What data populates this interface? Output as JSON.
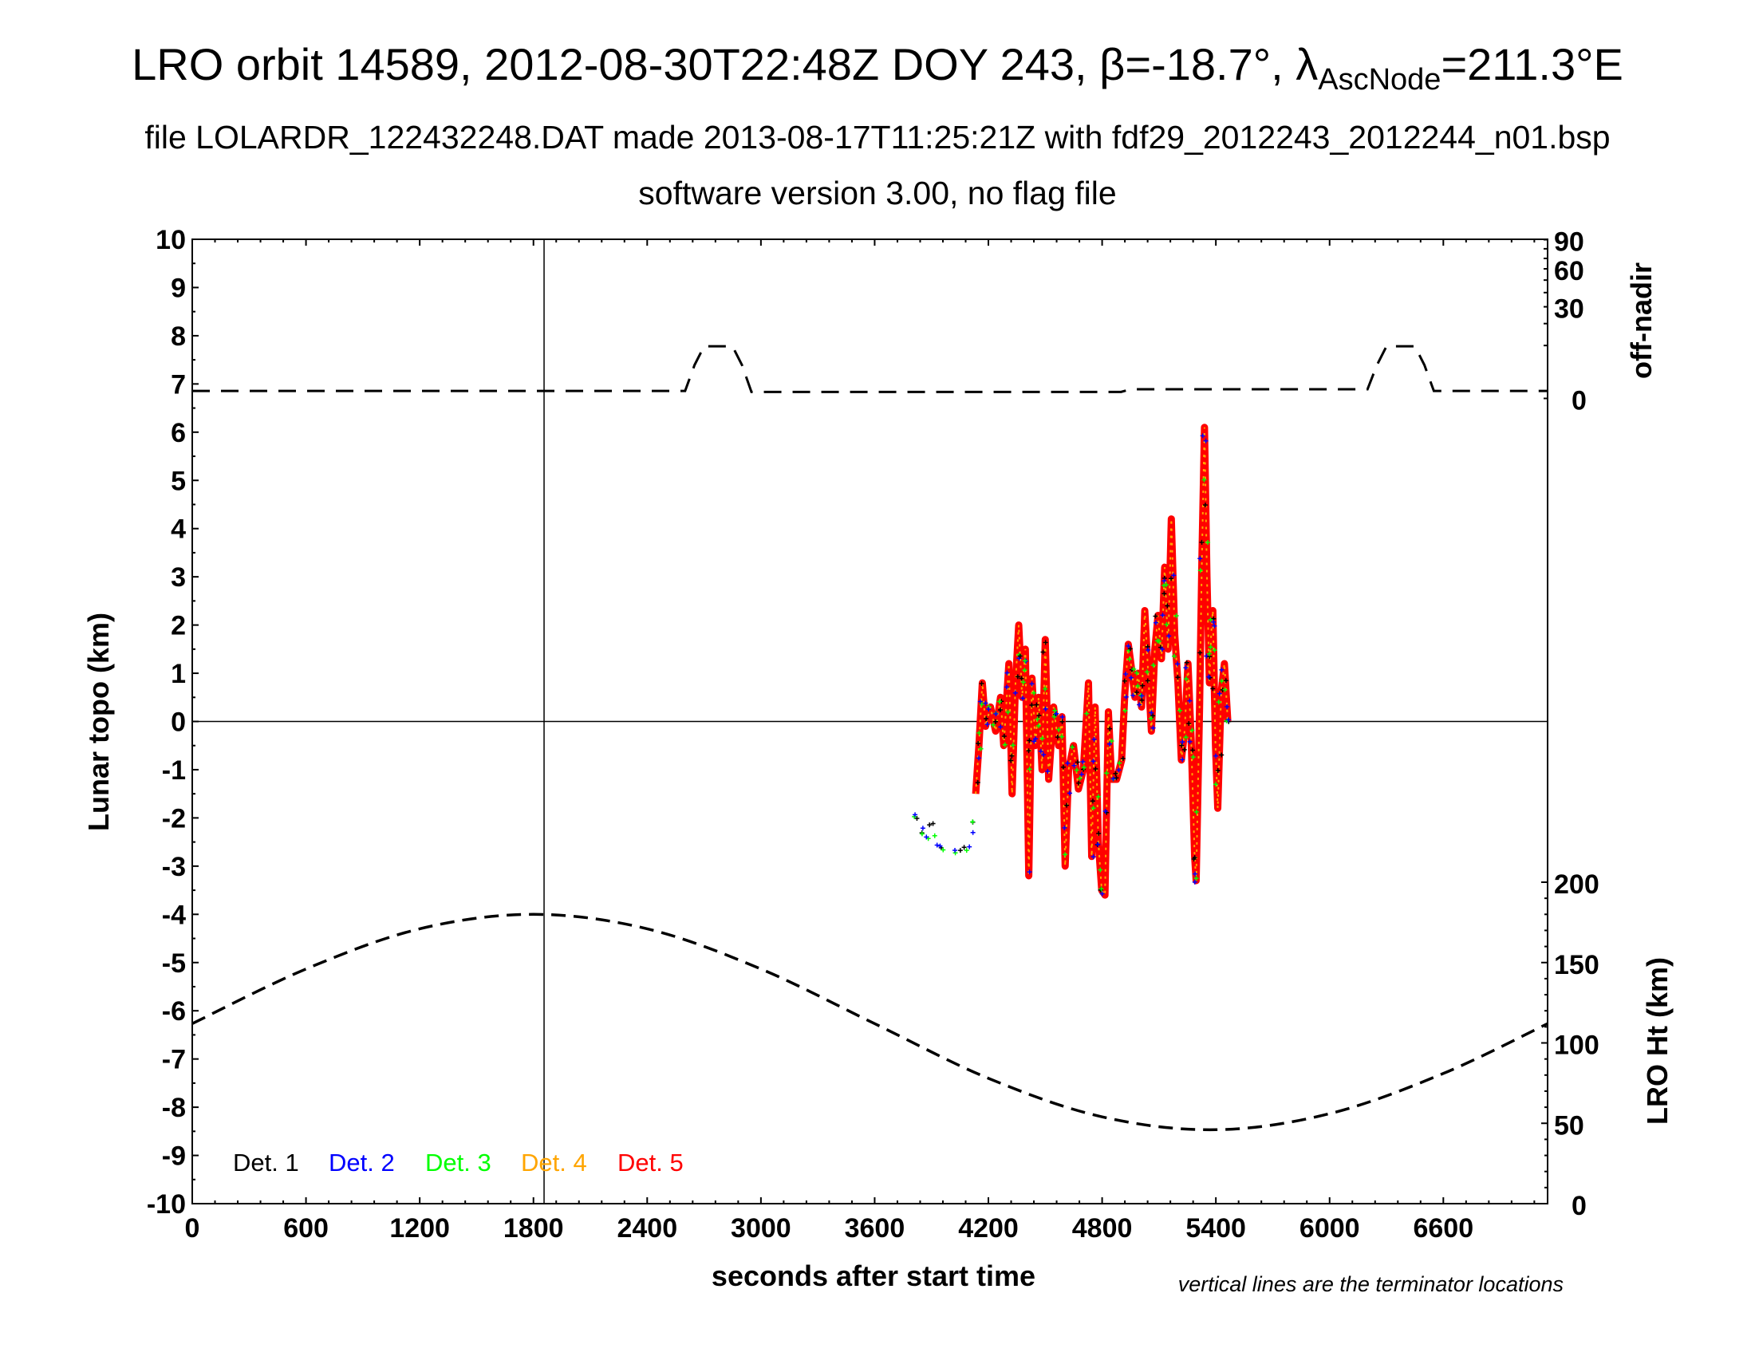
{
  "chart_data": {
    "type": "scatter",
    "title": {
      "main": "LRO orbit 14589, 2012-08-30T22:48Z DOY 243, β=-18.7°, λ",
      "sub": "AscNode",
      "end": "=211.3°E"
    },
    "subtitle": "file LOLARDR_122432248.DAT made 2013-08-17T11:25:21Z with fdf29_2012243_2012244_n01.bsp",
    "subtitle2": "software version 3.00, no flag file",
    "xlabel": "seconds after start time",
    "ylabel": "Lunar topo (km)",
    "y2label_top": "off-nadir",
    "y2label_bottom": "LRO Ht (km)",
    "footnote": "vertical lines are the terminator locations",
    "xlim": [
      0,
      7150
    ],
    "ylim": [
      -10,
      10
    ],
    "xticks": [
      "0",
      "600",
      "1200",
      "1800",
      "2400",
      "3000",
      "3600",
      "4200",
      "4800",
      "5400",
      "6000",
      "6600"
    ],
    "yticks": [
      "10",
      "9",
      "8",
      "7",
      "6",
      "5",
      "4",
      "3",
      "2",
      "1",
      "0",
      "-1",
      "-2",
      "-3",
      "-4",
      "-5",
      "-6",
      "-7",
      "-8",
      "-9",
      "-10"
    ],
    "offnadir_ticks": [
      "90",
      "60",
      "30",
      "0"
    ],
    "height_ticks": [
      "200",
      "150",
      "100",
      "50",
      "0"
    ],
    "terminator_times": [
      1856
    ],
    "legend": [
      {
        "label": "Det. 1",
        "color": "#000000"
      },
      {
        "label": "Det. 2",
        "color": "#0000ff"
      },
      {
        "label": "Det. 3",
        "color": "#00ff00"
      },
      {
        "label": "Det. 4",
        "color": "#ffa500"
      },
      {
        "label": "Det. 5",
        "color": "#ff0000"
      }
    ],
    "topo_series": [
      [
        3800,
        -1.9
      ],
      [
        3844,
        -2.2
      ],
      [
        3870,
        -2.4
      ],
      [
        3905,
        -2.0
      ],
      [
        3931,
        -2.6
      ],
      [
        3975,
        -2.7
      ],
      [
        4063,
        -2.7
      ],
      [
        4106,
        -2.6
      ],
      [
        4133,
        -1.5
      ],
      [
        4150,
        -0.5
      ],
      [
        4168,
        0.8
      ],
      [
        4185,
        -0.1
      ],
      [
        4211,
        0.3
      ],
      [
        4238,
        -0.2
      ],
      [
        4264,
        0.5
      ],
      [
        4281,
        -0.5
      ],
      [
        4308,
        1.2
      ],
      [
        4325,
        -1.5
      ],
      [
        4343,
        0.8
      ],
      [
        4360,
        2.0
      ],
      [
        4378,
        0.5
      ],
      [
        4395,
        1.5
      ],
      [
        4413,
        -3.2
      ],
      [
        4430,
        0.9
      ],
      [
        4448,
        -0.5
      ],
      [
        4465,
        0.5
      ],
      [
        4483,
        -1.0
      ],
      [
        4500,
        1.7
      ],
      [
        4518,
        -1.2
      ],
      [
        4544,
        0.3
      ],
      [
        4570,
        -0.5
      ],
      [
        4588,
        0.1
      ],
      [
        4605,
        -3.0
      ],
      [
        4623,
        -1.0
      ],
      [
        4649,
        -0.5
      ],
      [
        4675,
        -1.4
      ],
      [
        4701,
        -1.0
      ],
      [
        4728,
        0.8
      ],
      [
        4745,
        -2.8
      ],
      [
        4763,
        0.3
      ],
      [
        4780,
        -2.5
      ],
      [
        4798,
        -3.5
      ],
      [
        4815,
        -3.6
      ],
      [
        4833,
        0.2
      ],
      [
        4850,
        -1.2
      ],
      [
        4876,
        -1.2
      ],
      [
        4903,
        -0.8
      ],
      [
        4920,
        0.6
      ],
      [
        4938,
        1.6
      ],
      [
        4955,
        1.1
      ],
      [
        4973,
        0.5
      ],
      [
        4990,
        1.0
      ],
      [
        5008,
        0.3
      ],
      [
        5025,
        2.3
      ],
      [
        5043,
        1.0
      ],
      [
        5060,
        -0.2
      ],
      [
        5078,
        1.5
      ],
      [
        5095,
        2.2
      ],
      [
        5113,
        1.3
      ],
      [
        5130,
        3.2
      ],
      [
        5148,
        1.5
      ],
      [
        5165,
        4.2
      ],
      [
        5183,
        1.8
      ],
      [
        5200,
        0.8
      ],
      [
        5218,
        -0.8
      ],
      [
        5235,
        -0.2
      ],
      [
        5253,
        1.2
      ],
      [
        5270,
        -0.4
      ],
      [
        5288,
        -2.8
      ],
      [
        5296,
        -3.3
      ],
      [
        5314,
        0.3
      ],
      [
        5327,
        3.5
      ],
      [
        5340,
        6.1
      ],
      [
        5353,
        3.0
      ],
      [
        5366,
        0.8
      ],
      [
        5375,
        1.8
      ],
      [
        5384,
        2.3
      ],
      [
        5398,
        -0.5
      ],
      [
        5410,
        -1.8
      ],
      [
        5428,
        0.6
      ],
      [
        5445,
        1.2
      ],
      [
        5463,
        0.0
      ]
    ],
    "offnadir_deg": [
      [
        0,
        0.2
      ],
      [
        2600,
        0.2
      ],
      [
        2650,
        4
      ],
      [
        2700,
        9.7
      ],
      [
        2850,
        9.7
      ],
      [
        2900,
        4
      ],
      [
        2950,
        0.15
      ],
      [
        4900,
        0.15
      ],
      [
        4950,
        0.3
      ],
      [
        6200,
        0.3
      ],
      [
        6250,
        4
      ],
      [
        6300,
        9.7
      ],
      [
        6450,
        9.7
      ],
      [
        6500,
        4
      ],
      [
        6550,
        0.2
      ],
      [
        7150,
        0.2
      ]
    ],
    "lro_height_km": [
      [
        0,
        112
      ],
      [
        600,
        146
      ],
      [
        1200,
        171
      ],
      [
        1800,
        180
      ],
      [
        2400,
        171
      ],
      [
        3000,
        146
      ],
      [
        3600,
        112
      ],
      [
        4200,
        78
      ],
      [
        4800,
        54
      ],
      [
        5400,
        46
      ],
      [
        6000,
        56
      ],
      [
        6600,
        81
      ],
      [
        7150,
        112
      ]
    ]
  }
}
